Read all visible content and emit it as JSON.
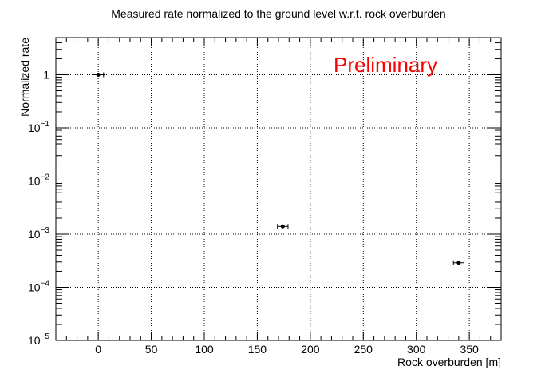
{
  "chart_data": {
    "type": "scatter",
    "title": "Measured rate normalized to the ground level w.r.t. rock overburden",
    "xlabel": "Rock overburden [m]",
    "ylabel": "Normalized rate",
    "xlim": [
      -40,
      380
    ],
    "ylim": [
      1e-05,
      5
    ],
    "x_log": false,
    "y_log": true,
    "grid": true,
    "x_ticks": [
      0,
      50,
      100,
      150,
      200,
      250,
      300,
      350
    ],
    "y_ticks": [
      {
        "value": 1,
        "base": "1",
        "exp": ""
      },
      {
        "value": 0.1,
        "base": "10",
        "exp": "−1"
      },
      {
        "value": 0.01,
        "base": "10",
        "exp": "−2"
      },
      {
        "value": 0.001,
        "base": "10",
        "exp": "−3"
      },
      {
        "value": 0.0001,
        "base": "10",
        "exp": "−4"
      },
      {
        "value": 1e-05,
        "base": "10",
        "exp": "−5"
      }
    ],
    "annotation": {
      "text": "Preliminary",
      "color": "#ff0000"
    },
    "points": [
      {
        "x": 0,
        "y": 1.0,
        "xerr": 5,
        "yerr_low": 0.08,
        "yerr_high": 0.08
      },
      {
        "x": 174,
        "y": 0.0014,
        "xerr": 5,
        "yerr_low": 0.0001,
        "yerr_high": 0.0001
      },
      {
        "x": 340,
        "y": 0.00029,
        "xerr": 5,
        "yerr_low": 3e-05,
        "yerr_high": 3e-05
      }
    ],
    "marker_color": "#000000"
  }
}
